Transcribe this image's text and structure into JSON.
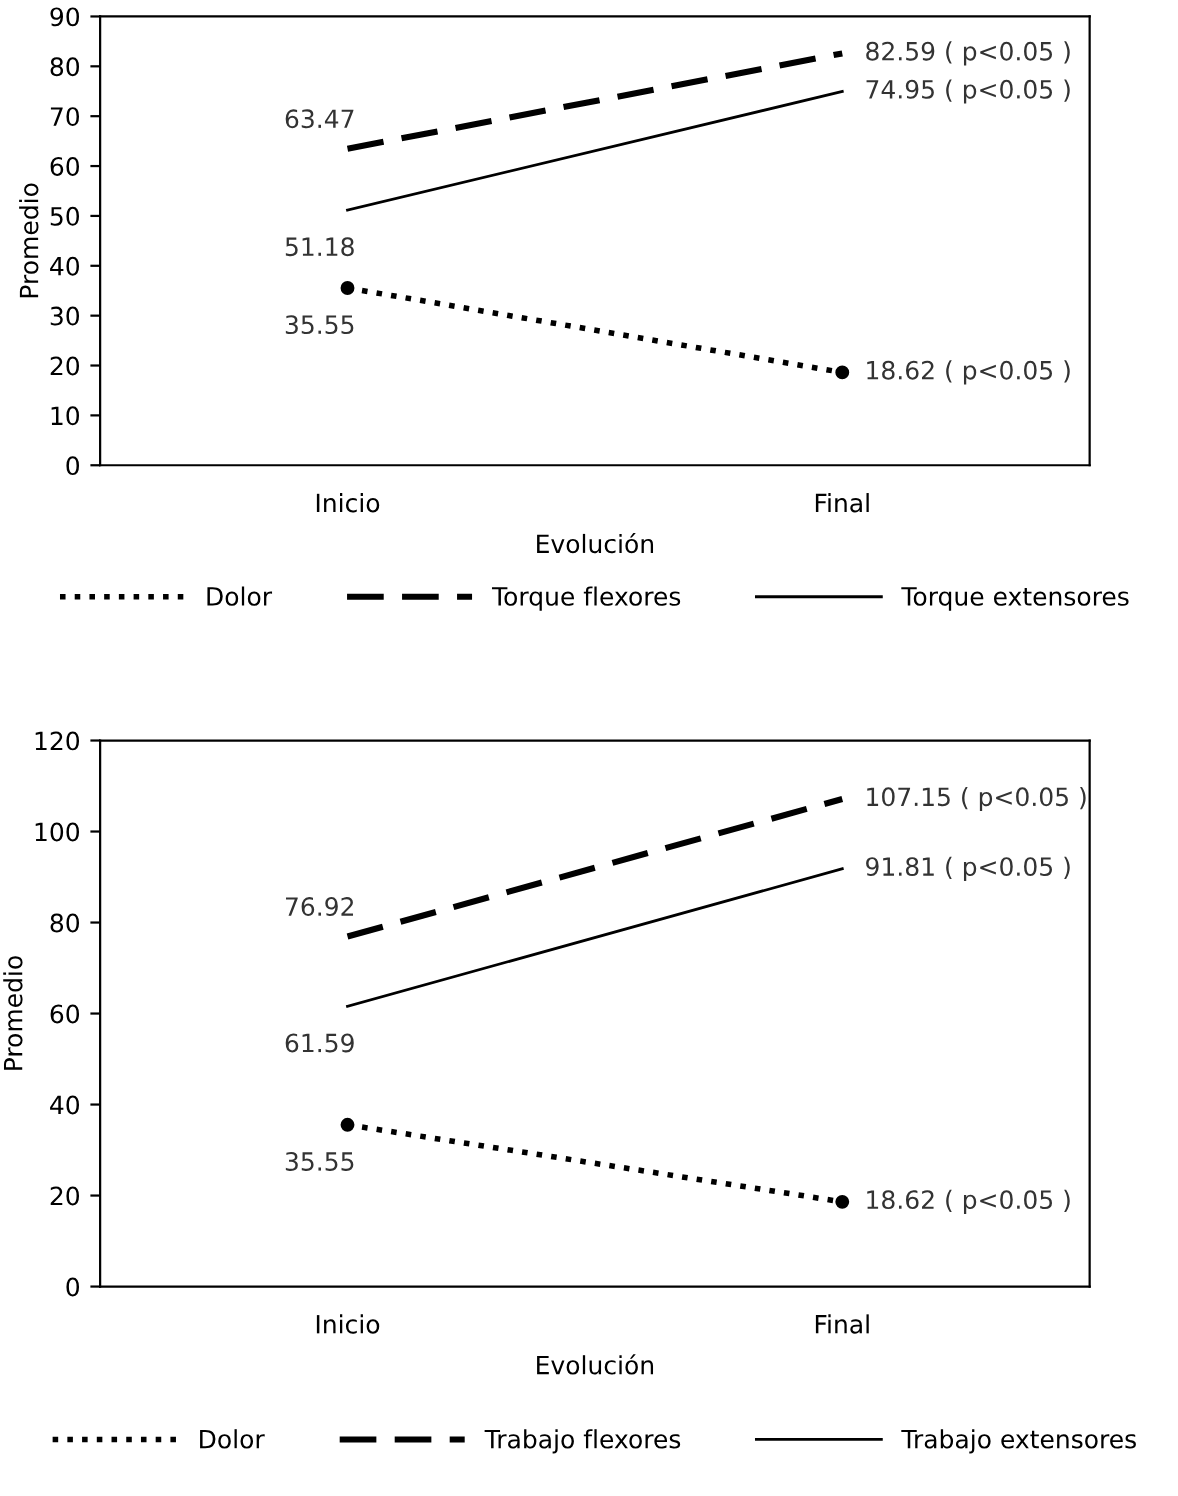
{
  "chart_data": [
    {
      "type": "line",
      "xlabel": "Evolución",
      "ylabel": "Promedio",
      "categories": [
        "Inicio",
        "Final"
      ],
      "ylim": [
        0,
        90
      ],
      "yticks": [
        0,
        10,
        20,
        30,
        40,
        50,
        60,
        70,
        80,
        90
      ],
      "grid": false,
      "legend": "bottom",
      "series": [
        {
          "name": "Dolor",
          "color": "#000000",
          "values": [
            35.55,
            18.62
          ],
          "value_labels": [
            "35.55",
            "18.62 ( p<0.05 )"
          ],
          "line_style": "dotted",
          "marker": "circle"
        },
        {
          "name": "Torque flexores",
          "color": "#000000",
          "values": [
            63.47,
            82.59
          ],
          "value_labels": [
            "63.47",
            "82.59 ( p<0.05 )"
          ],
          "line_style": "dashed",
          "marker": "none"
        },
        {
          "name": "Torque extensores",
          "color": "#000000",
          "values": [
            51.18,
            74.95
          ],
          "value_labels": [
            "51.18",
            "74.95 ( p<0.05 )"
          ],
          "line_style": "solid",
          "marker": "none"
        }
      ]
    },
    {
      "type": "line",
      "xlabel": "Evolución",
      "ylabel": "Promedio",
      "categories": [
        "Inicio",
        "Final"
      ],
      "ylim": [
        0,
        120
      ],
      "yticks": [
        0,
        20,
        40,
        60,
        80,
        100,
        120
      ],
      "grid": false,
      "legend": "bottom",
      "series": [
        {
          "name": "Dolor",
          "color": "#000000",
          "values": [
            35.55,
            18.62
          ],
          "value_labels": [
            "35.55",
            "18.62 ( p<0.05 )"
          ],
          "line_style": "dotted",
          "marker": "circle"
        },
        {
          "name": "Trabajo flexores",
          "color": "#000000",
          "values": [
            76.92,
            107.15
          ],
          "value_labels": [
            "76.92",
            "107.15 ( p<0.05 )"
          ],
          "line_style": "dashed",
          "marker": "none"
        },
        {
          "name": "Trabajo extensores",
          "color": "#000000",
          "values": [
            61.59,
            91.81
          ],
          "value_labels": [
            "61.59",
            "91.81 ( p<0.05 )"
          ],
          "line_style": "solid",
          "marker": "none"
        }
      ]
    }
  ]
}
